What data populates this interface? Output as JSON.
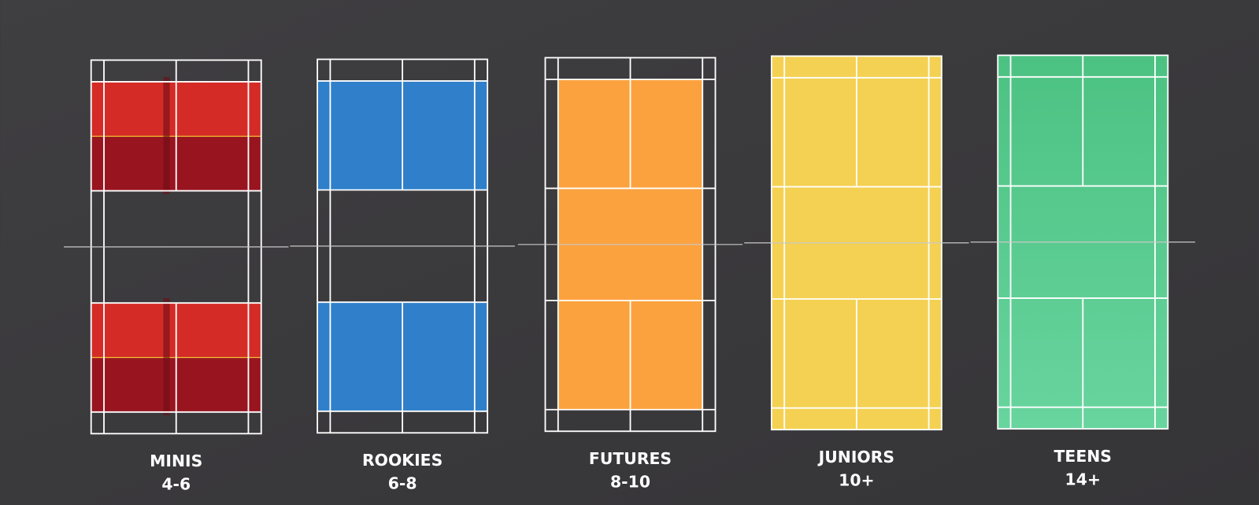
{
  "courts": [
    {
      "name": "MINIS",
      "ages": "4-6"
    },
    {
      "name": "ROOKIES",
      "ages": "6-8"
    },
    {
      "name": "FUTURES",
      "ages": "8-10"
    },
    {
      "name": "JUNIORS",
      "ages": "10+"
    },
    {
      "name": "TEENS",
      "ages": "14+"
    }
  ]
}
